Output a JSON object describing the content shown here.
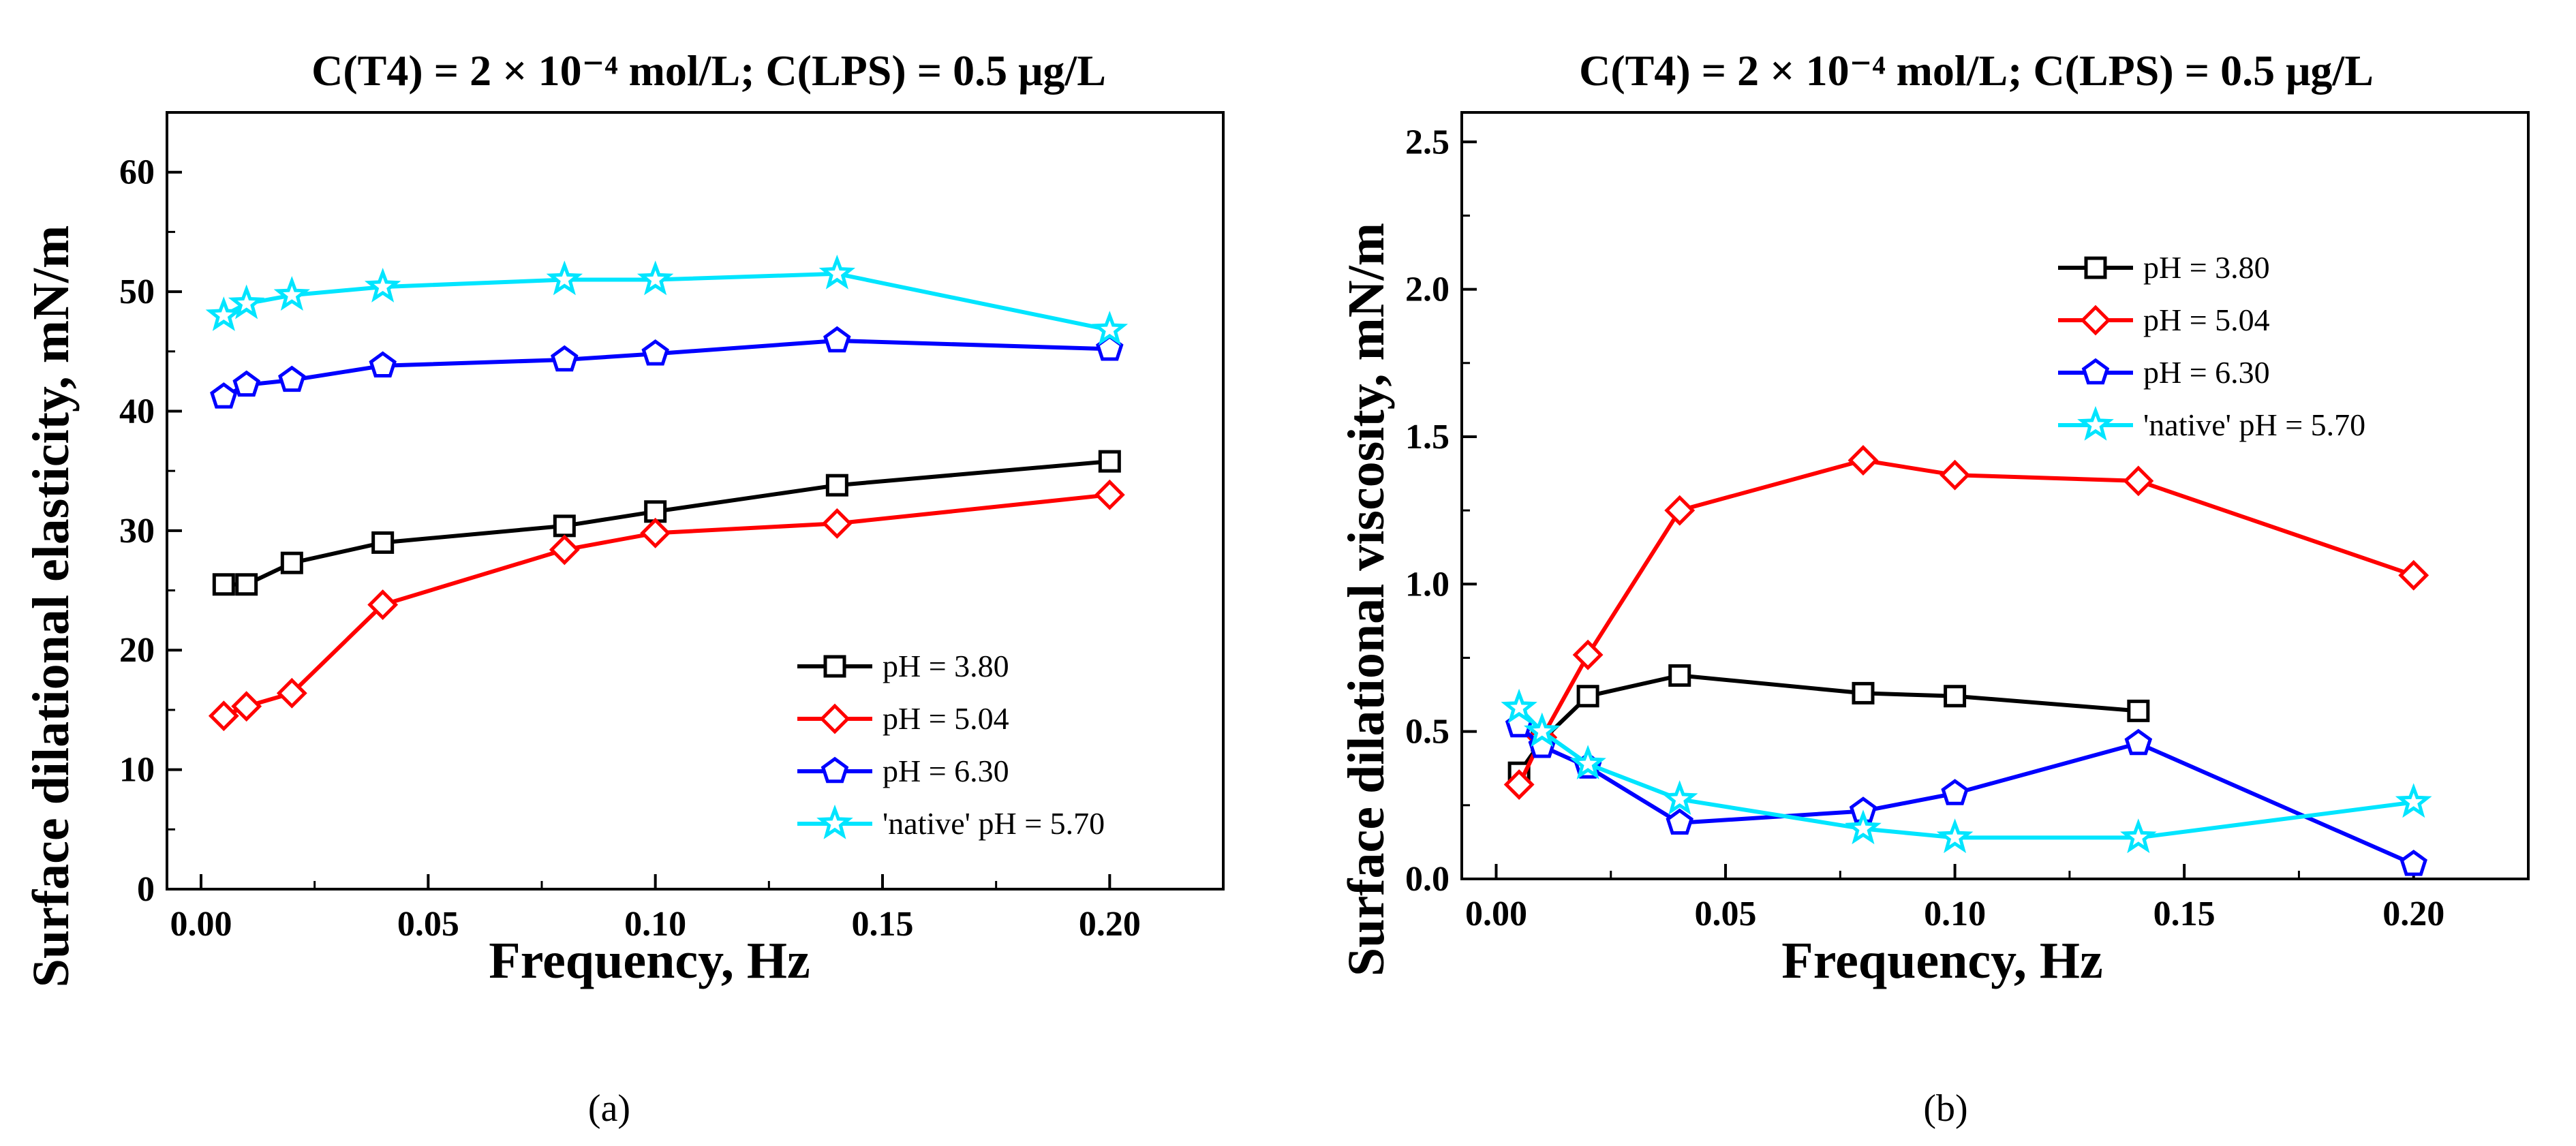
{
  "chart_data": [
    {
      "type": "line",
      "panel": "a",
      "caption_left": "(",
      "caption_letter": "a",
      "caption_right": ")",
      "title": "C(T4) = 2 × 10⁻⁴ mol/L; C(LPS) = 0.5 μg/L",
      "xlabel": "Frequency, Hz",
      "ylabel": "Surface dilational elasticity, mN/m",
      "xlim": [
        -0.0075,
        0.225
      ],
      "ylim": [
        0,
        65
      ],
      "xticks": [
        "0.00",
        "0.05",
        "0.10",
        "0.15",
        "0.20"
      ],
      "xtick_values": [
        0,
        0.05,
        0.1,
        0.15,
        0.2
      ],
      "yticks": [
        "0",
        "10",
        "20",
        "30",
        "40",
        "50",
        "60"
      ],
      "ytick_values": [
        0,
        10,
        20,
        30,
        40,
        50,
        60
      ],
      "legend_position": "lower-right",
      "series": [
        {
          "name": "pH = 3.80",
          "color": "#000000",
          "marker": "square",
          "x": [
            0.005,
            0.01,
            0.02,
            0.04,
            0.08,
            0.1,
            0.14,
            0.2
          ],
          "y": [
            25.5,
            25.5,
            27.3,
            29,
            30.4,
            31.6,
            33.8,
            35.8
          ]
        },
        {
          "name": "pH = 5.04",
          "color": "#ff0000",
          "marker": "diamond",
          "x": [
            0.005,
            0.01,
            0.02,
            0.04,
            0.08,
            0.1,
            0.14,
            0.2
          ],
          "y": [
            14.5,
            15.3,
            16.4,
            23.8,
            28.4,
            29.8,
            30.6,
            33
          ]
        },
        {
          "name": "pH = 6.30",
          "color": "#0000ff",
          "marker": "pentagon",
          "x": [
            0.005,
            0.01,
            0.02,
            0.04,
            0.08,
            0.1,
            0.14,
            0.2
          ],
          "y": [
            41.2,
            42.2,
            42.6,
            43.8,
            44.3,
            44.8,
            45.9,
            45.2
          ]
        },
        {
          "name": "'native' pH = 5.70",
          "color": "#00e5ff",
          "marker": "star",
          "x": [
            0.005,
            0.01,
            0.02,
            0.04,
            0.08,
            0.1,
            0.14,
            0.2
          ],
          "y": [
            48,
            49,
            49.7,
            50.4,
            51,
            51,
            51.5,
            46.8
          ]
        }
      ]
    },
    {
      "type": "line",
      "panel": "b",
      "caption_left": "(",
      "caption_letter": "b",
      "caption_right": ")",
      "title": "C(T4) = 2 × 10⁻⁴ mol/L; C(LPS) = 0.5 μg/L",
      "xlabel": "Frequency, Hz",
      "ylabel": "Surface dilational viscosity, mN/m",
      "xlim": [
        -0.0075,
        0.225
      ],
      "ylim": [
        0,
        2.6
      ],
      "xticks": [
        "0.00",
        "0.05",
        "0.10",
        "0.15",
        "0.20"
      ],
      "xtick_values": [
        0,
        0.05,
        0.1,
        0.15,
        0.2
      ],
      "yticks": [
        "0.0",
        "0.5",
        "1.0",
        "1.5",
        "2.0",
        "2.5"
      ],
      "ytick_values": [
        0,
        0.5,
        1,
        1.5,
        2,
        2.5
      ],
      "legend_position": "top-right",
      "series": [
        {
          "name": "pH = 3.80",
          "color": "#000000",
          "marker": "square",
          "x": [
            0.005,
            0.01,
            0.02,
            0.04,
            0.08,
            0.1,
            0.14
          ],
          "y": [
            0.36,
            0.47,
            0.62,
            0.69,
            0.63,
            0.62,
            0.57
          ]
        },
        {
          "name": "pH = 5.04",
          "color": "#ff0000",
          "marker": "diamond",
          "x": [
            0.005,
            0.01,
            0.02,
            0.04,
            0.08,
            0.1,
            0.14,
            0.2
          ],
          "y": [
            0.32,
            0.48,
            0.76,
            1.25,
            1.42,
            1.37,
            1.35,
            1.03
          ]
        },
        {
          "name": "pH = 6.30",
          "color": "#0000ff",
          "marker": "pentagon",
          "x": [
            0.005,
            0.01,
            0.02,
            0.04,
            0.08,
            0.1,
            0.14,
            0.2
          ],
          "y": [
            0.52,
            0.45,
            0.38,
            0.19,
            0.23,
            0.29,
            0.46,
            0.05
          ]
        },
        {
          "name": "'native' pH = 5.70",
          "color": "#00e5ff",
          "marker": "star",
          "x": [
            0.005,
            0.01,
            0.02,
            0.04,
            0.08,
            0.1,
            0.14,
            0.2
          ],
          "y": [
            0.58,
            0.5,
            0.39,
            0.27,
            0.17,
            0.14,
            0.14,
            0.26
          ]
        }
      ]
    }
  ]
}
